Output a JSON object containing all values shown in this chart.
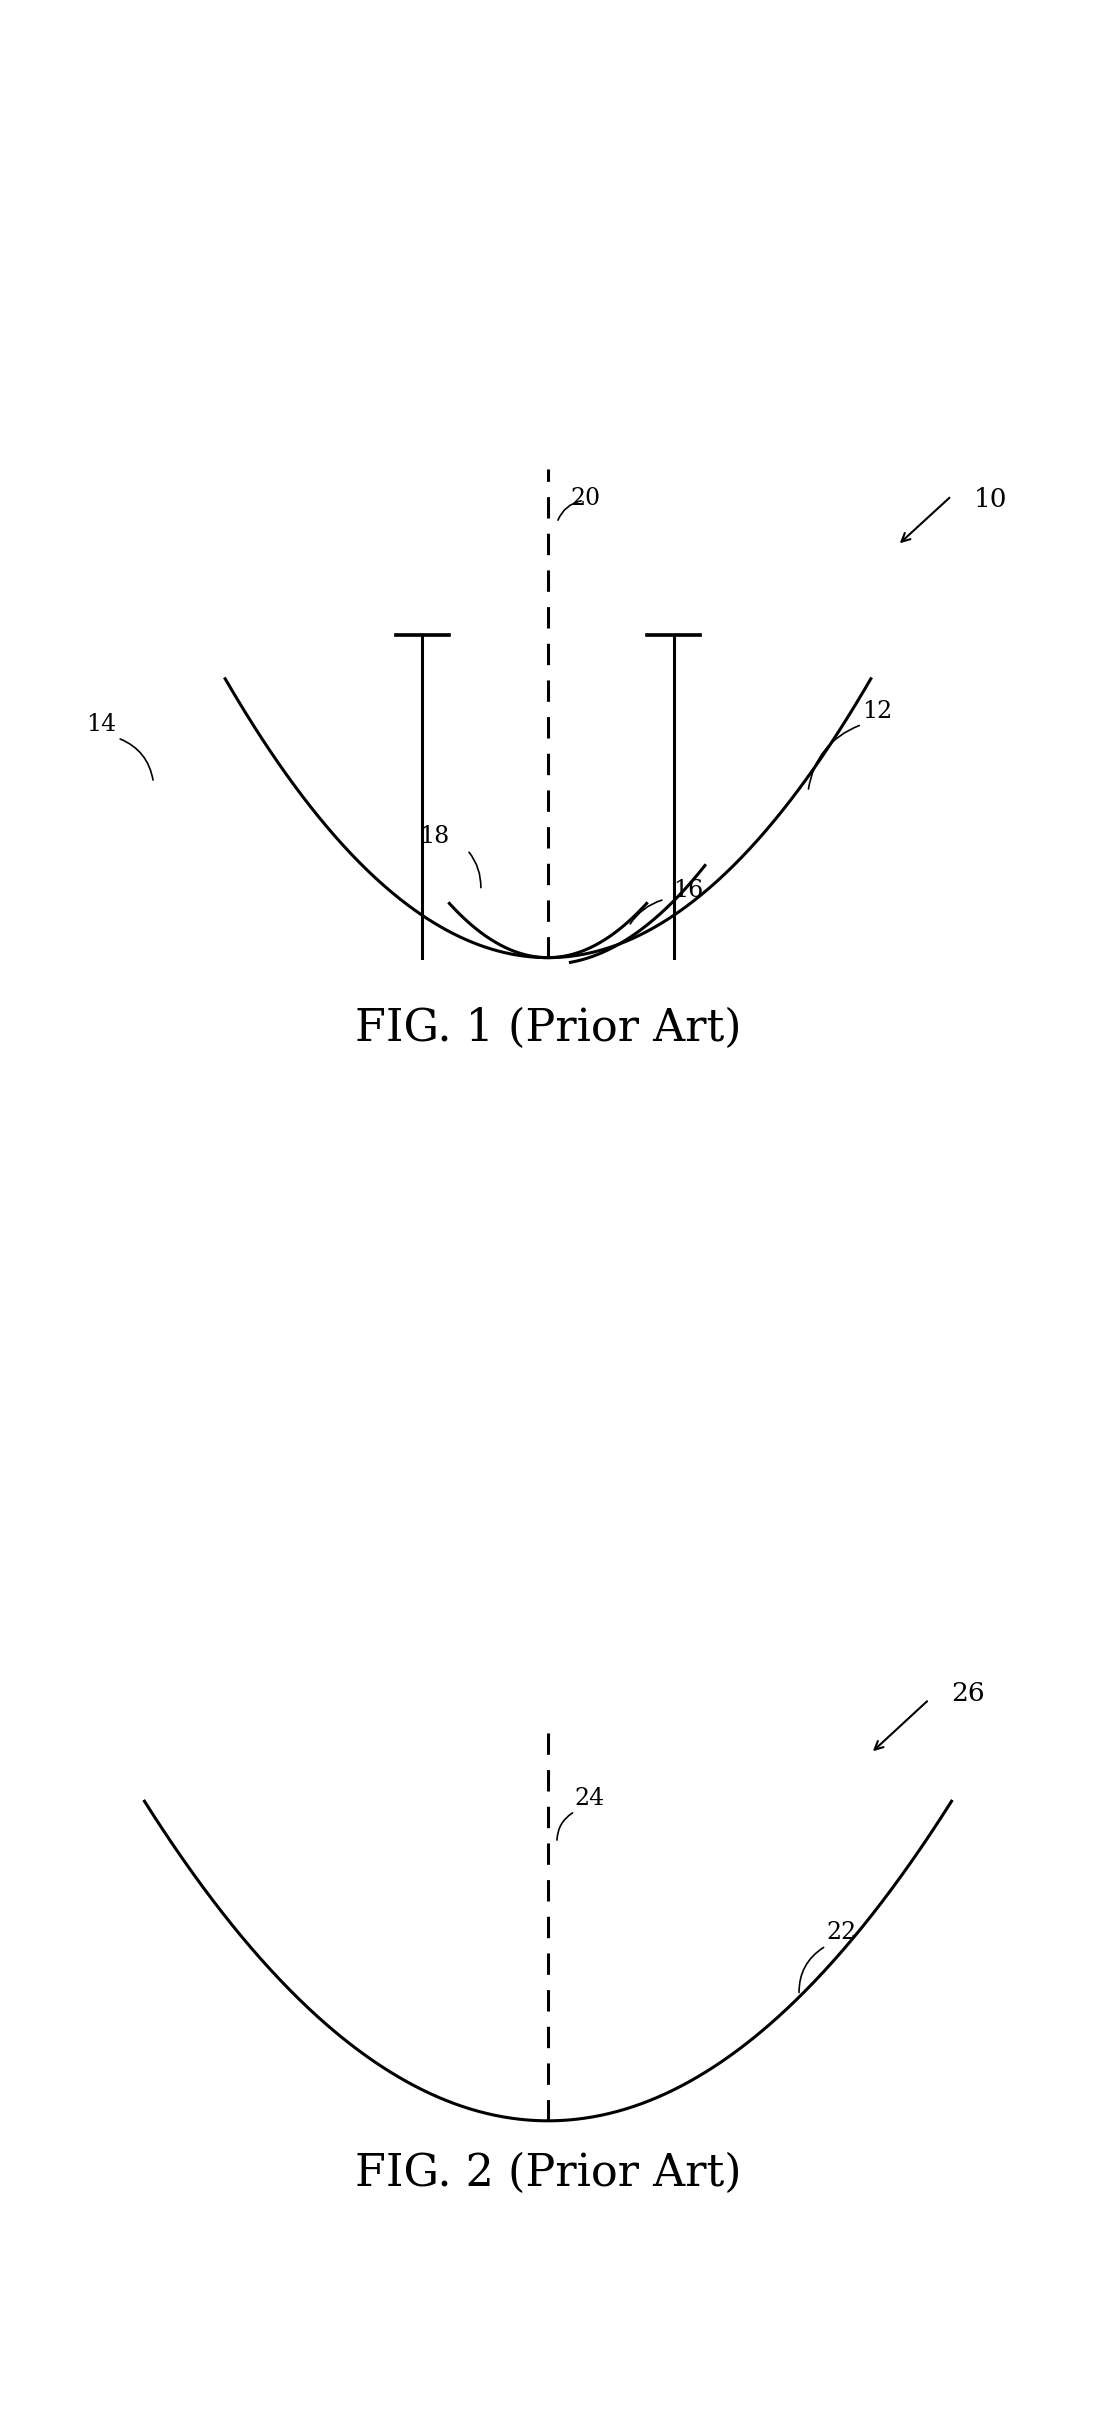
{
  "fig1_title": "FIG. 1 (Prior Art)",
  "fig2_title": "FIG. 2 (Prior Art)",
  "label_10": "10",
  "label_12": "12",
  "label_14": "14",
  "label_16": "16",
  "label_18": "18",
  "label_20": "20",
  "label_22": "22",
  "label_24": "24",
  "label_26": "26",
  "line_color": "#000000",
  "bg_color": "#ffffff",
  "font_size_label": 17,
  "font_size_title": 32,
  "dpi": 100
}
